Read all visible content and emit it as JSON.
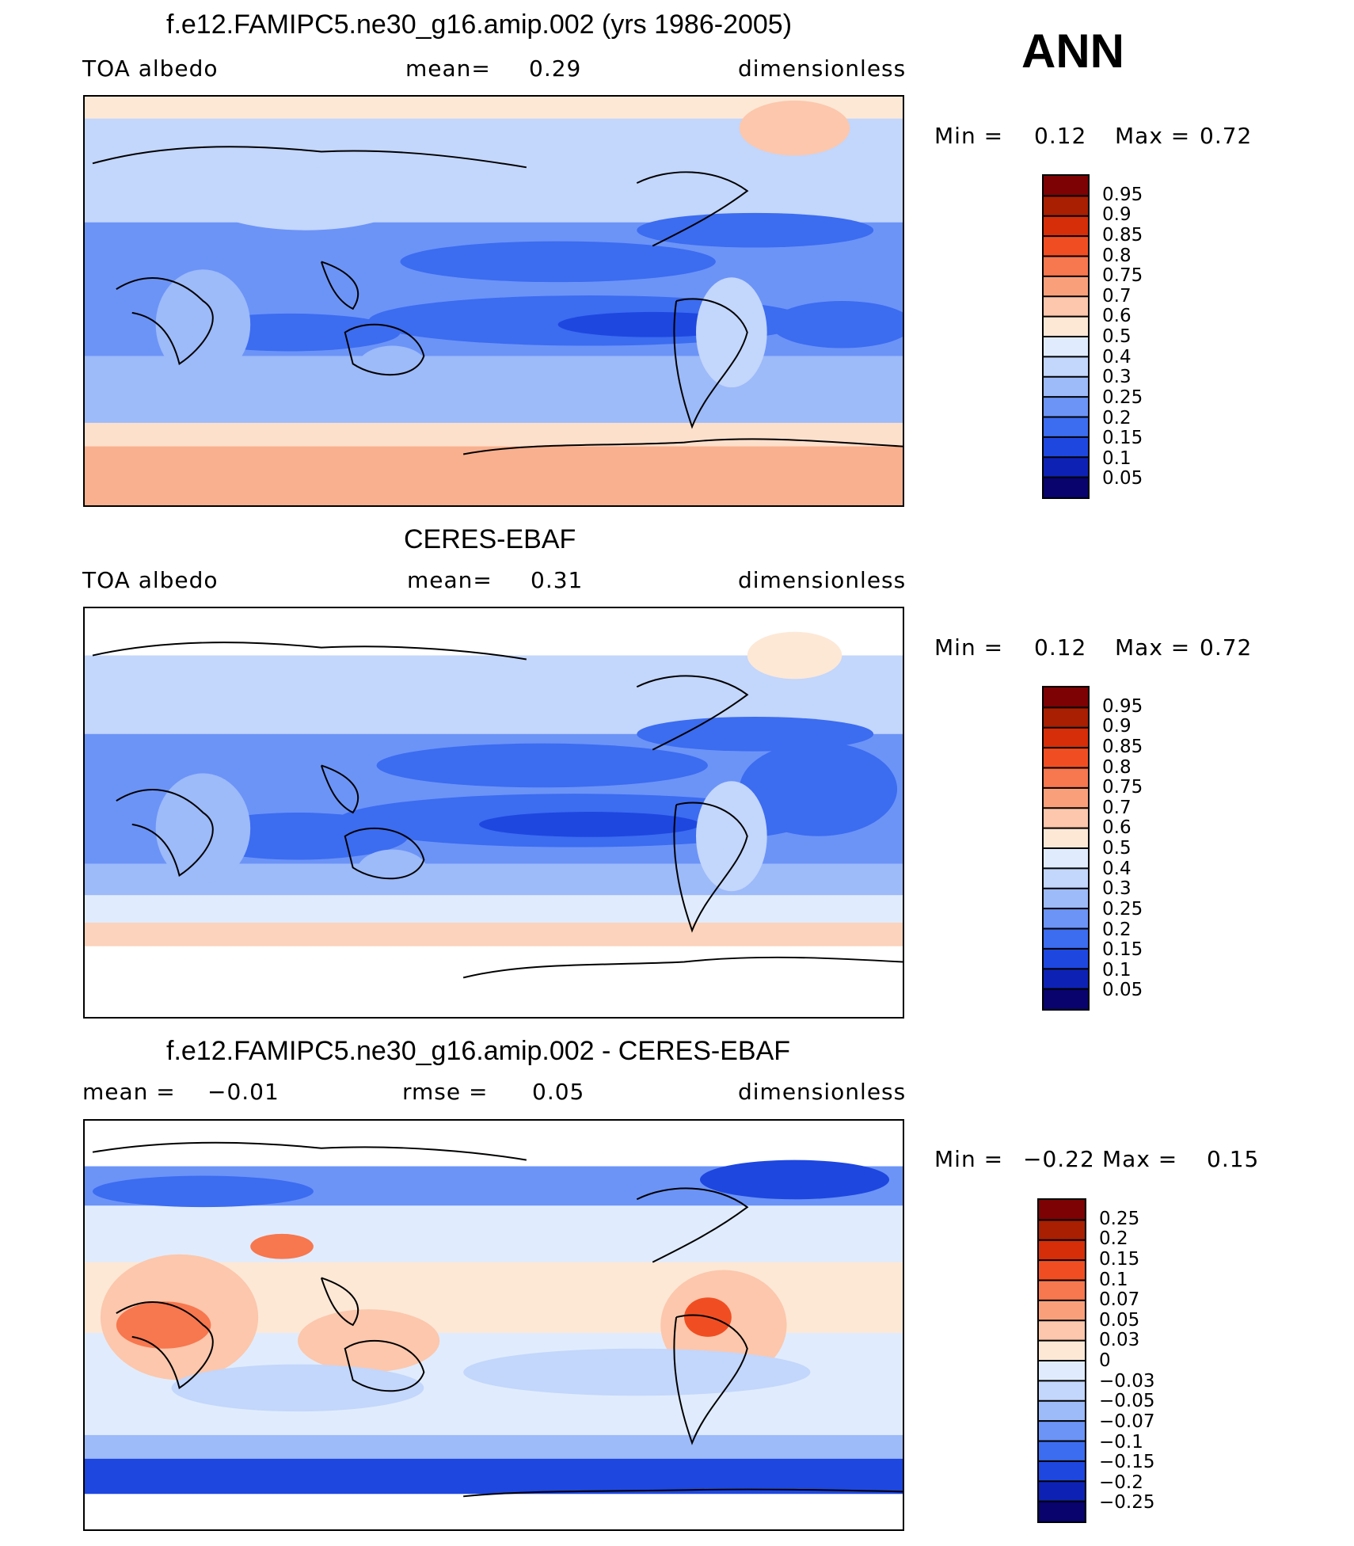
{
  "season": "ANN",
  "palettes": {
    "abs": [
      "#08036d",
      "#0d22b4",
      "#1e47e0",
      "#3c6cf0",
      "#6c94f7",
      "#9dbaf9",
      "#c3d6fb",
      "#e0ecfd",
      "#fde8d6",
      "#fcc7ac",
      "#f9a07b",
      "#f7774f",
      "#f04e22",
      "#d52e08",
      "#a81f02",
      "#7d0203"
    ],
    "diff": [
      "#08036d",
      "#0d22b4",
      "#1e47e0",
      "#3c6cf0",
      "#6c94f7",
      "#9dbaf9",
      "#c3d6fb",
      "#e0ecfd",
      "#fde8d6",
      "#fcc7ac",
      "#f9a07b",
      "#f7774f",
      "#f04e22",
      "#d52e08",
      "#a81f02",
      "#7d0203"
    ]
  },
  "panels": [
    {
      "id": "model",
      "title": "f.e12.FAMIPC5.ne30_g16.amip.002 (yrs 1986-2005)",
      "left": "TOA  albedo",
      "mid_label": "mean=",
      "mid_value": "0.29",
      "right": "dimensionless",
      "min_label": "Min  =",
      "min_value": "0.12",
      "max_label": "Max  =",
      "max_value": "0.72",
      "levels": [
        "0.95",
        "0.9",
        "0.85",
        "0.8",
        "0.75",
        "0.7",
        "0.6",
        "0.5",
        "0.4",
        "0.3",
        "0.25",
        "0.2",
        "0.15",
        "0.1",
        "0.05"
      ]
    },
    {
      "id": "obs",
      "title": "CERES-EBAF",
      "left": "TOA  albedo",
      "mid_label": "mean=",
      "mid_value": "0.31",
      "right": "dimensionless",
      "min_label": "Min  =",
      "min_value": "0.12",
      "max_label": "Max  =",
      "max_value": "0.72",
      "levels": [
        "0.95",
        "0.9",
        "0.85",
        "0.8",
        "0.75",
        "0.7",
        "0.6",
        "0.5",
        "0.4",
        "0.3",
        "0.25",
        "0.2",
        "0.15",
        "0.1",
        "0.05"
      ]
    },
    {
      "id": "diff",
      "title": "f.e12.FAMIPC5.ne30_g16.amip.002 - CERES-EBAF",
      "left_label": "mean  =",
      "left_value": "−0.01",
      "mid_label": "rmse  =",
      "mid_value": "0.05",
      "right": "dimensionless",
      "min_label": "Min  =",
      "min_value": "−0.22",
      "max_label": "Max  =",
      "max_value": "0.15",
      "levels": [
        "0.25",
        "0.2",
        "0.15",
        "0.1",
        "0.07",
        "0.05",
        "0.03",
        "0",
        "−0.03",
        "−0.05",
        "−0.07",
        "−0.1",
        "−0.15",
        "−0.2",
        "−0.25"
      ]
    }
  ]
}
